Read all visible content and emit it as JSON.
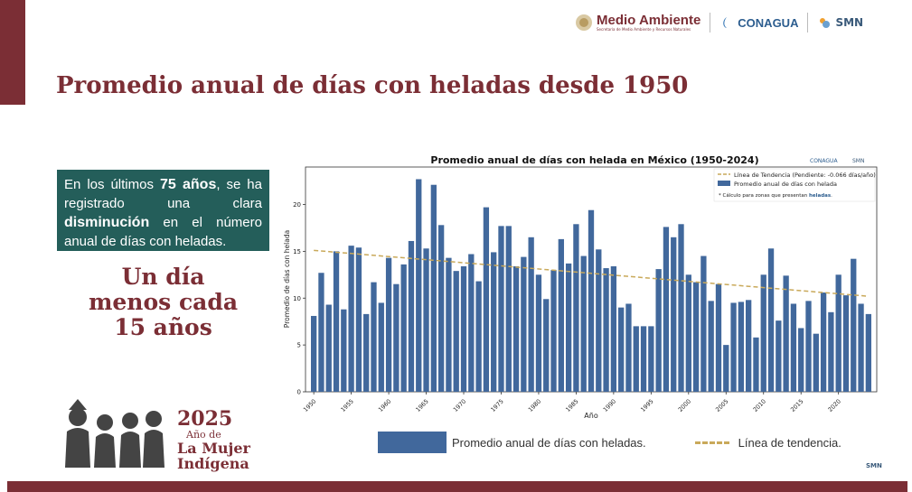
{
  "header": {
    "logos": {
      "medio_ambiente": "Medio Ambiente",
      "medio_ambiente_sub": "Secretaría de Medio Ambiente y Recursos Naturales",
      "conagua": "CONAGUA",
      "smn": "SMN"
    }
  },
  "slide": {
    "title": "Promedio anual de días con heladas desde 1950",
    "info_parts": [
      "En los últimos ",
      "75 años",
      ", se ha registrado una clara ",
      "disminución",
      " en el número anual de días con heladas."
    ],
    "big_line1": "Un día",
    "big_line2": "menos cada",
    "big_line3": "15 años",
    "anio": {
      "year": "2025",
      "ano_de": "Año de",
      "la_mujer": "La Mujer",
      "indigena": "Indígena"
    },
    "legend_bar": "Promedio anual de días con heladas.",
    "legend_trend": "Línea de tendencia.",
    "footer_smn": "SMN"
  },
  "colors": {
    "bar": "#41689c",
    "trend": "#c9a95a",
    "accent": "#7b2e35",
    "box": "#245e5a"
  },
  "chart_data": {
    "type": "bar",
    "title": "Promedio anual de días con helada en México (1950-2024)",
    "xlabel": "Año",
    "ylabel": "Promedio de días con helada",
    "ylim": [
      0,
      24
    ],
    "yticks": [
      0,
      5,
      10,
      15,
      20
    ],
    "xticks": [
      1950,
      1955,
      1960,
      1965,
      1970,
      1975,
      1980,
      1985,
      1990,
      1995,
      2000,
      2005,
      2010,
      2015,
      2020
    ],
    "x_start": 1950,
    "values": [
      8.1,
      12.7,
      9.3,
      15.0,
      8.8,
      15.6,
      15.4,
      8.3,
      11.7,
      9.5,
      14.3,
      11.5,
      13.6,
      16.1,
      22.7,
      15.3,
      22.1,
      17.8,
      14.3,
      12.9,
      13.4,
      14.7,
      11.8,
      19.7,
      14.9,
      17.7,
      17.7,
      13.4,
      14.4,
      16.5,
      12.5,
      9.9,
      13.0,
      16.3,
      13.7,
      17.9,
      14.5,
      19.4,
      15.2,
      13.2,
      13.4,
      9.0,
      9.4,
      7.0,
      7.0,
      7.0,
      13.1,
      17.6,
      16.5,
      17.9,
      12.5,
      11.7,
      14.5,
      9.7,
      11.5,
      5.0,
      9.5,
      9.6,
      9.8,
      5.8,
      12.5,
      15.3,
      7.6,
      12.4,
      9.4,
      6.8,
      9.7,
      6.2,
      10.6,
      8.5,
      12.5,
      10.3,
      14.2,
      9.4,
      8.3
    ],
    "trend": {
      "start": 15.1,
      "end": 10.2
    },
    "legend": {
      "trend_label": "Línea de Tendencia (Pendiente: -0.066 días/año)",
      "bar_label": "Promedio anual de días con helada",
      "note_prefix": "* Cálculo para zonas que presentan ",
      "note_bold": "heladas",
      "note_suffix": "."
    },
    "chart_logos": {
      "conagua": "CONAGUA",
      "smn": "SMN"
    }
  }
}
